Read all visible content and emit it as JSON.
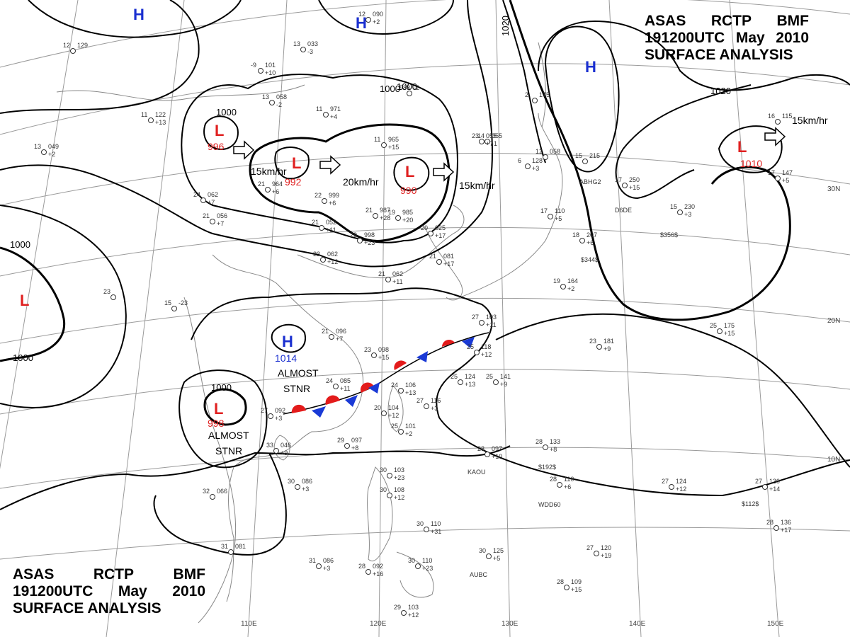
{
  "header": {
    "line1": [
      "ASAS",
      "RCTP",
      "BMF"
    ],
    "line2": [
      "191200UTC",
      "May",
      "2010"
    ],
    "line3": "SURFACE  ANALYSIS"
  },
  "colors": {
    "low": "#e02020",
    "high": "#1a2fd0",
    "lines": "#000000",
    "coast": "#888888",
    "grid": "#9a9a9a",
    "warm_front": "#e31b1b",
    "cold_front": "#1a3ad6"
  },
  "grid": {
    "lon_labels": [
      "110E",
      "120E",
      "130E",
      "140E",
      "150E"
    ],
    "lat_labels": [
      "30N",
      "20N",
      "10N"
    ]
  },
  "isobars": [
    "1000",
    "1000",
    "1000",
    "1000",
    "1000",
    "1000",
    "1020",
    "1020"
  ],
  "pressure_centers": [
    {
      "type": "H",
      "value": ""
    },
    {
      "type": "H",
      "value": ""
    },
    {
      "type": "H",
      "value": ""
    },
    {
      "type": "L",
      "value": "996"
    },
    {
      "type": "L",
      "value": "992"
    },
    {
      "type": "L",
      "value": "990"
    },
    {
      "type": "L",
      "value": "1010"
    },
    {
      "type": "L",
      "value": ""
    },
    {
      "type": "H",
      "value": "1014"
    },
    {
      "type": "L",
      "value": "998"
    }
  ],
  "motion_labels": [
    "15km/hr",
    "20km/hr",
    "15km/hr",
    "15km/hr"
  ],
  "annotations": [
    "ALMOST STNR",
    "ALMOST STNR"
  ],
  "stations": [
    [
      "12",
      "090",
      "+2"
    ],
    [
      "13",
      "033",
      "-3"
    ],
    [
      "-9",
      "101",
      "+10"
    ],
    [
      "13",
      "058",
      "-2"
    ],
    [
      "11",
      "971",
      "+4"
    ],
    [
      "988",
      "-2",
      ""
    ],
    [
      "11",
      "122",
      "+13"
    ],
    [
      "12",
      "129",
      ""
    ],
    [
      "13",
      "049",
      "+2"
    ],
    [
      "11",
      "965",
      "+15"
    ],
    [
      "21",
      "964",
      "+6"
    ],
    [
      "22",
      "999",
      "+6"
    ],
    [
      "21",
      "987",
      "+28"
    ],
    [
      "19",
      "985",
      "+20"
    ],
    [
      "24",
      "062",
      "+7"
    ],
    [
      "21",
      "056",
      "+7"
    ],
    [
      "21",
      "052",
      "+11"
    ],
    [
      "29",
      "998",
      "+23"
    ],
    [
      "23",
      "062",
      "+12"
    ],
    [
      "20",
      "025",
      "+17"
    ],
    [
      "21",
      "081",
      "+17"
    ],
    [
      "21",
      "062",
      "+11"
    ],
    [
      "23",
      "055",
      "+7"
    ],
    [
      "14",
      "055",
      "-1"
    ],
    [
      "6",
      "128",
      "+3"
    ],
    [
      "2",
      "175",
      ""
    ],
    [
      "12",
      "058",
      ""
    ],
    [
      "17",
      "110",
      "+5"
    ],
    [
      "18",
      "207",
      "+6"
    ],
    [
      "15",
      "230",
      "+3"
    ],
    [
      "17",
      "250",
      "+15"
    ],
    [
      "15",
      "215",
      ""
    ],
    [
      "17",
      "147",
      "+5"
    ],
    [
      "16",
      "115",
      ""
    ],
    [
      "19",
      "164",
      "+2"
    ],
    [
      "25",
      "175",
      "+15"
    ],
    [
      "23",
      "181",
      "+9"
    ],
    [
      "15",
      "-23",
      ""
    ],
    [
      "23",
      "",
      ""
    ],
    [
      "21",
      "096",
      "+7"
    ],
    [
      "23",
      "098",
      "+15"
    ],
    [
      "24",
      "085",
      "+11"
    ],
    [
      "24",
      "106",
      "+13"
    ],
    [
      "20",
      "104",
      "+12"
    ],
    [
      "25",
      "101",
      "+2"
    ],
    [
      "27",
      "116",
      "+3"
    ],
    [
      "25",
      "118",
      "+12"
    ],
    [
      "25",
      "124",
      "+13"
    ],
    [
      "25",
      "141",
      "+9"
    ],
    [
      "27",
      "103",
      "+11"
    ],
    [
      "27",
      "092",
      "+3"
    ],
    [
      "33",
      "046",
      "+9"
    ],
    [
      "29",
      "097",
      "+8"
    ],
    [
      "28",
      "097",
      "+10"
    ],
    [
      "28",
      "133",
      "+8"
    ],
    [
      "28",
      "110",
      "+6"
    ],
    [
      "27",
      "124",
      "+12"
    ],
    [
      "27",
      "130",
      "+14"
    ],
    [
      "28",
      "136",
      "+17"
    ],
    [
      "30",
      "103",
      "+23"
    ],
    [
      "30",
      "086",
      "+3"
    ],
    [
      "32",
      "066",
      ""
    ],
    [
      "31",
      "081",
      ""
    ],
    [
      "31",
      "086",
      "+3"
    ],
    [
      "30",
      "108",
      "+12"
    ],
    [
      "30",
      "110",
      "+31"
    ],
    [
      "30",
      "125",
      "+5"
    ],
    [
      "28",
      "109",
      "+15"
    ],
    [
      "27",
      "120",
      "+19"
    ],
    [
      "29",
      "103",
      "+12"
    ],
    [
      "30",
      "110",
      "+23"
    ],
    [
      "28",
      "092",
      "+16"
    ]
  ],
  "station_codes": [
    "ABHG2",
    "D6DE",
    "$356$",
    "$344$",
    "$192$",
    "WDD60",
    "$112$",
    "KAOU",
    "AUBC"
  ]
}
